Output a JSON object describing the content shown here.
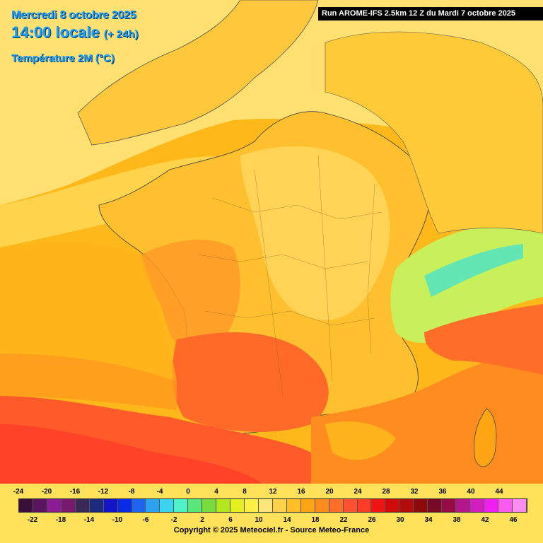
{
  "header": {
    "date": "Mercredi 8 octobre 2025",
    "time": "14:00 locale",
    "lead": "(+ 24h)",
    "variable": "Température 2M (°C)",
    "run": "Run AROME-IFS 2.5km 12 Z du Mardi 7 octobre 2025"
  },
  "legend": {
    "top_labels": [
      "-24",
      "-20",
      "-16",
      "-12",
      "-8",
      "-4",
      "0",
      "4",
      "8",
      "12",
      "16",
      "20",
      "24",
      "28",
      "32",
      "36",
      "40",
      "44"
    ],
    "bottom_labels": [
      "-22",
      "-18",
      "-14",
      "-10",
      "-6",
      "-2",
      "2",
      "6",
      "10",
      "14",
      "18",
      "22",
      "26",
      "30",
      "34",
      "38",
      "42",
      "46"
    ],
    "colors": [
      "#3a0f3a",
      "#5a1460",
      "#8c1c96",
      "#7a1a6e",
      "#3a2858",
      "#1c2a80",
      "#1414c8",
      "#0a2ae6",
      "#1e64f0",
      "#2ea0f0",
      "#3cd2f0",
      "#50f0c8",
      "#5ae678",
      "#7adc3c",
      "#b4e61e",
      "#e6f01e",
      "#fff046",
      "#ffe678",
      "#ffd24a",
      "#ffbe28",
      "#ffa514",
      "#ff8c1e",
      "#ff6e28",
      "#ff5032",
      "#ff3c28",
      "#f01414",
      "#d20a0a",
      "#b40a0a",
      "#8c0a0a",
      "#780a28",
      "#960a46",
      "#b4148c",
      "#d21ebe",
      "#f01ef0",
      "#ff5af0",
      "#ff8cf0"
    ],
    "copyright": "Copyright © 2025 Meteociel.fr - Source Meteo-France"
  }
}
